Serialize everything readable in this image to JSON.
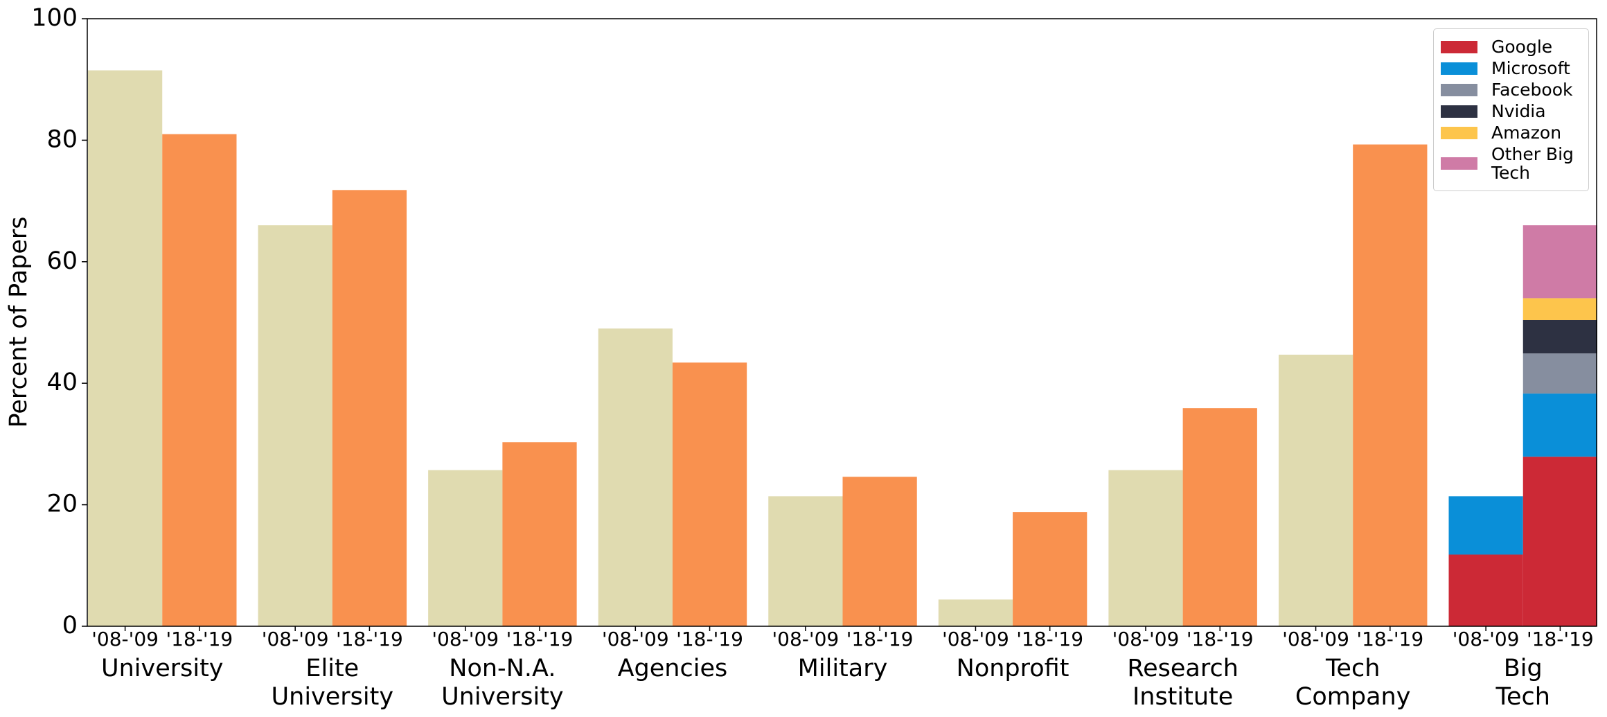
{
  "chart_data": {
    "type": "bar",
    "ylabel": "Percent of Papers",
    "ylim": [
      0,
      100
    ],
    "yticks": [
      0,
      20,
      40,
      60,
      80,
      100
    ],
    "categories": [
      [
        "University"
      ],
      [
        "Elite",
        "University"
      ],
      [
        "Non-N.A.",
        "University"
      ],
      [
        "Agencies"
      ],
      [
        "Military"
      ],
      [
        "Nonprofit"
      ],
      [
        "Research",
        "Institute"
      ],
      [
        "Tech",
        "Company"
      ],
      [
        "Big",
        "Tech"
      ]
    ],
    "series": [
      {
        "name": "'08-'09",
        "color": "#e0dbb0",
        "values": [
          91.5,
          66,
          25.7,
          49,
          21.4,
          4.4,
          25.7,
          44.7,
          null
        ]
      },
      {
        "name": "'18-'19",
        "color": "#f9914f",
        "values": [
          81,
          71.8,
          30.3,
          43.4,
          24.6,
          18.8,
          35.9,
          79.3,
          null
        ]
      }
    ],
    "stacks": [
      {
        "name": "Google",
        "color": "#cc2936",
        "values": [
          11.8,
          27.9
        ]
      },
      {
        "name": "Microsoft",
        "color": "#0a8fd8",
        "values": [
          9.6,
          10.4
        ]
      },
      {
        "name": "Facebook",
        "color": "#868e9f",
        "values": [
          0,
          6.6
        ]
      },
      {
        "name": "Nvidia",
        "color": "#2d3142",
        "values": [
          0,
          5.5
        ]
      },
      {
        "name": "Amazon",
        "color": "#fdc54c",
        "values": [
          0,
          3.6
        ]
      },
      {
        "name": "Other Big Tech",
        "color": "#cf7ba6",
        "values": [
          0,
          12
        ]
      }
    ]
  }
}
